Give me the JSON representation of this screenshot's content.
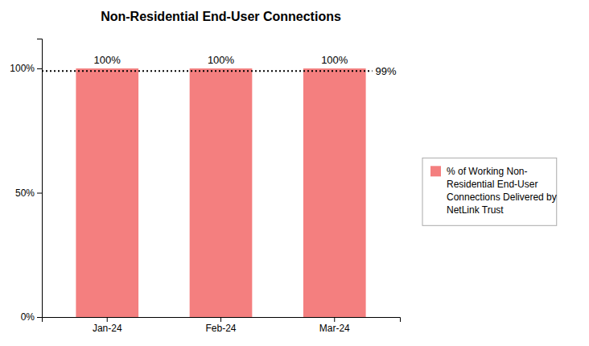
{
  "chart_data": {
    "type": "bar",
    "title": "Non-Residential End-User Connections",
    "categories": [
      "Jan-24",
      "Feb-24",
      "Mar-24"
    ],
    "series": [
      {
        "name": "% of Working Non-\nResidential End-User\nConnections Delivered by\nNetLink Trust",
        "color": "#F47F7F",
        "values": [
          100,
          100,
          100
        ],
        "value_labels": [
          "100%",
          "100%",
          "100%"
        ]
      }
    ],
    "ylim": [
      0,
      112
    ],
    "yticks": [
      {
        "value": 0,
        "label": "0%"
      },
      {
        "value": 50,
        "label": "50%"
      },
      {
        "value": 100,
        "label": "100%"
      }
    ],
    "annotations": [
      {
        "y": 99,
        "text": "99%",
        "color": "#000000",
        "line_style": "dotted"
      }
    ],
    "data_labels": true,
    "grid": false,
    "legend": "right"
  }
}
